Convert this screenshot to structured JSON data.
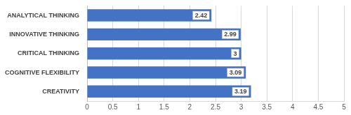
{
  "chart_data": {
    "type": "bar",
    "orientation": "horizontal",
    "categories": [
      "ANALYTICAL THINKING",
      "INNOVATIVE THINKING",
      "CRITICAL THINKING",
      "COGNITIVE FLEXIBILITY",
      "CREATIVITY"
    ],
    "values": [
      2.42,
      2.99,
      3,
      3.09,
      3.19
    ],
    "color": "#4472c4",
    "xlim": [
      0,
      5
    ],
    "xticks": [
      0,
      0.5,
      1,
      1.5,
      2,
      2.5,
      3,
      3.5,
      4,
      4.5,
      5
    ],
    "grid": true,
    "data_labels": true
  }
}
